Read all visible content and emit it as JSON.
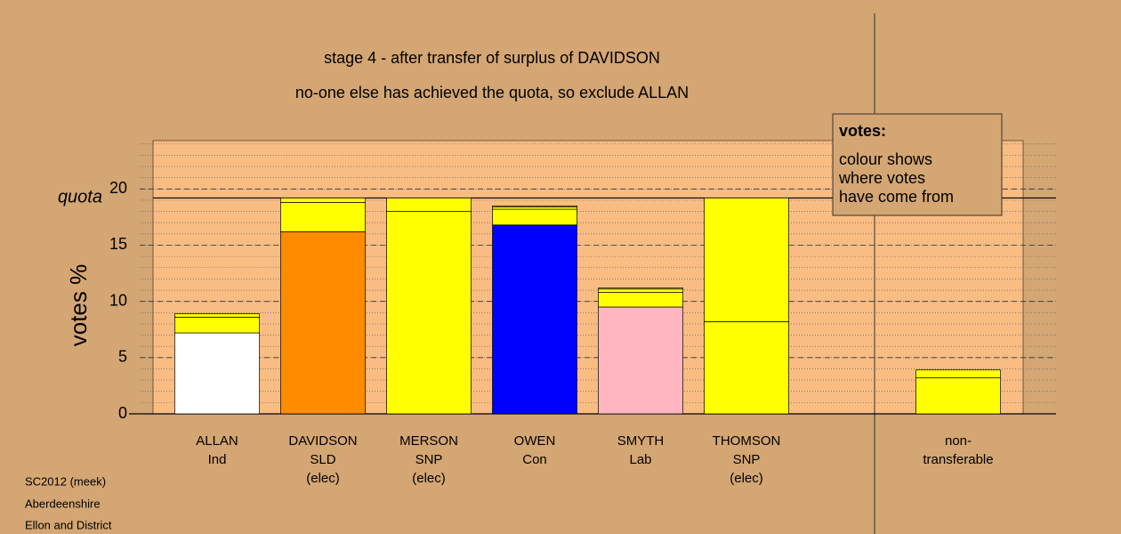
{
  "chart_data": {
    "type": "stacked-bar",
    "title": "stage 4 - after transfer of surplus of DAVIDSON",
    "subtitle": "no-one else has achieved the quota, so exclude ALLAN",
    "y_label": "votes %",
    "quota_label": "quota",
    "quota": 19.2,
    "ylim": [
      0,
      24.3
    ],
    "yticks": [
      0,
      5,
      10,
      15,
      20
    ],
    "minor_grid_step": 1,
    "categories": [
      [
        "ALLAN",
        "Ind"
      ],
      [
        "DAVIDSON",
        "SLD",
        "(elec)"
      ],
      [
        "MERSON",
        "SNP",
        "(elec)"
      ],
      [
        "OWEN",
        "Con"
      ],
      [
        "SMYTH",
        "Lab"
      ],
      [
        "THOMSON",
        "SNP",
        "(elec)"
      ],
      [
        "non-",
        "transferable"
      ]
    ],
    "segments": [
      [
        {
          "value": 7.2,
          "color": "#ffffff"
        },
        {
          "value": 1.4,
          "color": "#ffff00"
        },
        {
          "value": 0.3,
          "color": "#ffff00"
        }
      ],
      [
        {
          "value": 16.2,
          "color": "#ff8c00"
        },
        {
          "value": 2.6,
          "color": "#ffff00"
        },
        {
          "value": 0.4,
          "color": "#ffff00"
        }
      ],
      [
        {
          "value": 18.0,
          "color": "#ffff00"
        },
        {
          "value": 1.2,
          "color": "#ffff00"
        }
      ],
      [
        {
          "value": 16.8,
          "color": "#0000ff"
        },
        {
          "value": 1.4,
          "color": "#ffff00"
        },
        {
          "value": 0.2,
          "color": "#ffff00"
        },
        {
          "value": 0.1,
          "color": "#ffff00"
        }
      ],
      [
        {
          "value": 9.5,
          "color": "#ffb6c1"
        },
        {
          "value": 1.3,
          "color": "#ffff00"
        },
        {
          "value": 0.3,
          "color": "#ffff00"
        },
        {
          "value": 0.1,
          "color": "#ffff00"
        }
      ],
      [
        {
          "value": 8.2,
          "color": "#ffff00"
        },
        {
          "value": 11.0,
          "color": "#ffff00"
        }
      ],
      [
        {
          "value": 3.2,
          "color": "#ffff00"
        },
        {
          "value": 0.7,
          "color": "#ffff00"
        }
      ]
    ],
    "legend": {
      "title": "votes:",
      "lines": [
        "colour shows",
        "where votes",
        "have come from"
      ]
    },
    "footer": [
      "SC2012 (meek)",
      "Aberdeenshire",
      "Ellon and District"
    ]
  }
}
